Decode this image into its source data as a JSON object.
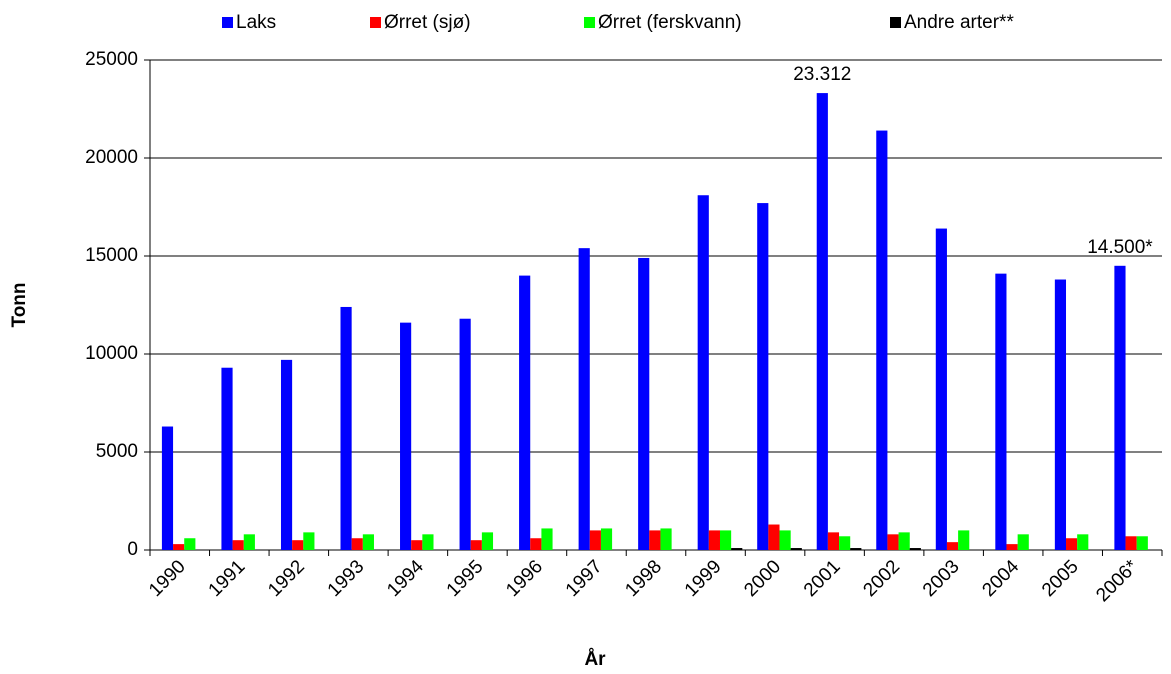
{
  "chart_data": {
    "type": "bar",
    "xlabel": "År",
    "ylabel": "Tonn",
    "categories": [
      "1990",
      "1991",
      "1992",
      "1993",
      "1994",
      "1995",
      "1996",
      "1997",
      "1998",
      "1999",
      "2000",
      "2001",
      "2002",
      "2003",
      "2004",
      "2005",
      "2006*"
    ],
    "series": [
      {
        "name": "Laks",
        "color": "#0000ff",
        "values": [
          6300,
          9300,
          9700,
          12400,
          11600,
          11800,
          14000,
          15400,
          14900,
          18100,
          17700,
          23312,
          21400,
          16400,
          14100,
          13800,
          14500
        ],
        "value_labels": [
          null,
          null,
          null,
          null,
          null,
          null,
          null,
          null,
          null,
          null,
          null,
          "23.312",
          null,
          null,
          null,
          null,
          "14.500*"
        ]
      },
      {
        "name": "Ørret (sjø)",
        "color": "#ff0000",
        "values": [
          300,
          500,
          500,
          600,
          500,
          500,
          600,
          1000,
          1000,
          1000,
          1300,
          900,
          800,
          400,
          300,
          600,
          700
        ]
      },
      {
        "name": "Ørret (ferskvann)",
        "color": "#00ff00",
        "values": [
          600,
          800,
          900,
          800,
          800,
          900,
          1100,
          1100,
          1100,
          1000,
          1000,
          700,
          900,
          1000,
          800,
          800,
          700
        ]
      },
      {
        "name": "Andre arter**",
        "color": "#000000",
        "values": [
          0,
          0,
          0,
          0,
          0,
          0,
          0,
          0,
          0,
          100,
          100,
          100,
          100,
          0,
          0,
          0,
          0
        ]
      }
    ],
    "ylim": [
      0,
      25000
    ],
    "yticks": [
      0,
      5000,
      10000,
      15000,
      20000,
      25000
    ],
    "grid": true,
    "legend": "top"
  }
}
